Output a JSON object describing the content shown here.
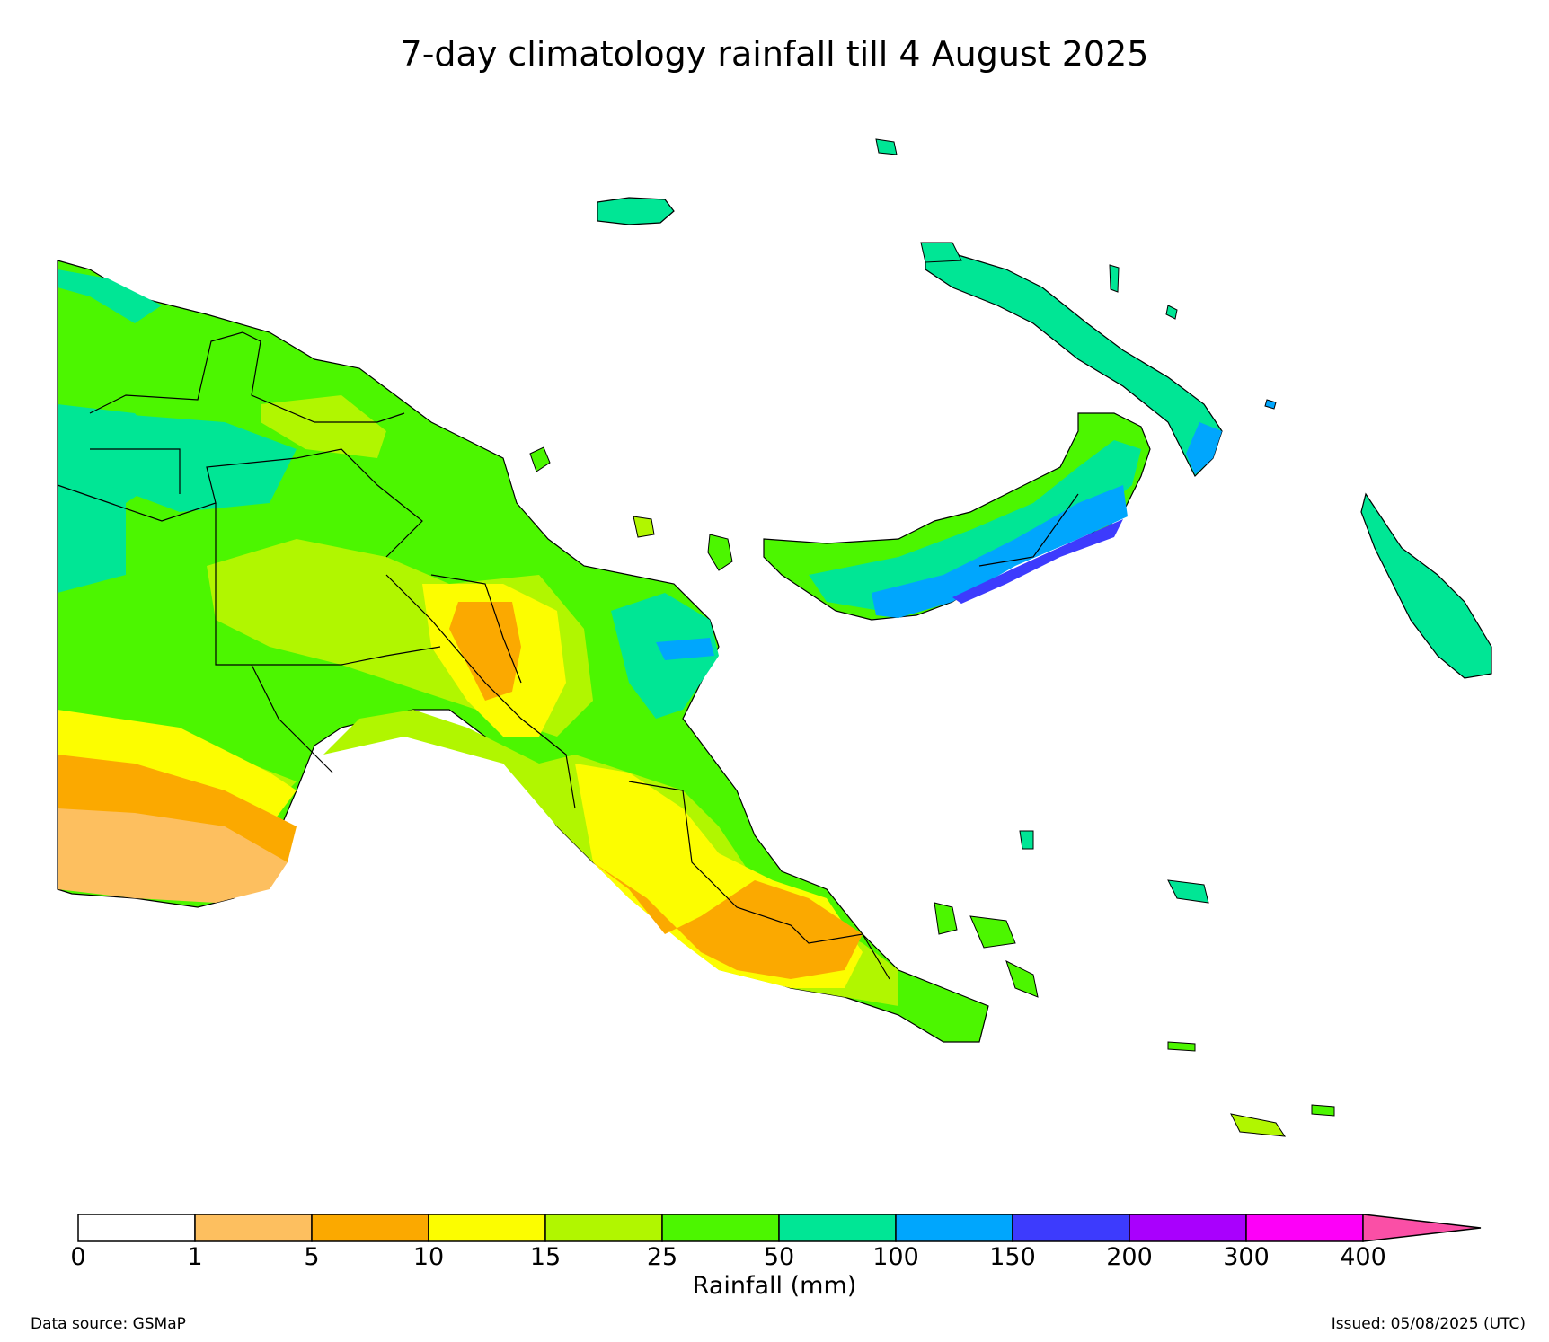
{
  "title": "7-day climatology rainfall till 4 August 2025",
  "colorbar": {
    "label": "Rainfall (mm)",
    "ticks": [
      "0",
      "1",
      "5",
      "10",
      "15",
      "25",
      "50",
      "100",
      "150",
      "200",
      "300",
      "400"
    ],
    "bins": [
      {
        "range": "0-1",
        "color": "#ffffff"
      },
      {
        "range": "1-5",
        "color": "#fdbf5f"
      },
      {
        "range": "5-10",
        "color": "#fba900"
      },
      {
        "range": "10-15",
        "color": "#fcfd00"
      },
      {
        "range": "15-25",
        "color": "#b1f600"
      },
      {
        "range": "25-50",
        "color": "#4cf600"
      },
      {
        "range": "50-100",
        "color": "#00e695"
      },
      {
        "range": "100-150",
        "color": "#00a6fd"
      },
      {
        "range": "150-200",
        "color": "#3d3bfd"
      },
      {
        "range": "200-300",
        "color": "#a900fd"
      },
      {
        "range": "300-400",
        "color": "#fd00f8"
      },
      {
        "range": ">400",
        "color": "#fa4fa6"
      }
    ]
  },
  "footer": {
    "source": "Data source: GSMaP",
    "issued": "Issued: 05/08/2025 (UTC)"
  }
}
